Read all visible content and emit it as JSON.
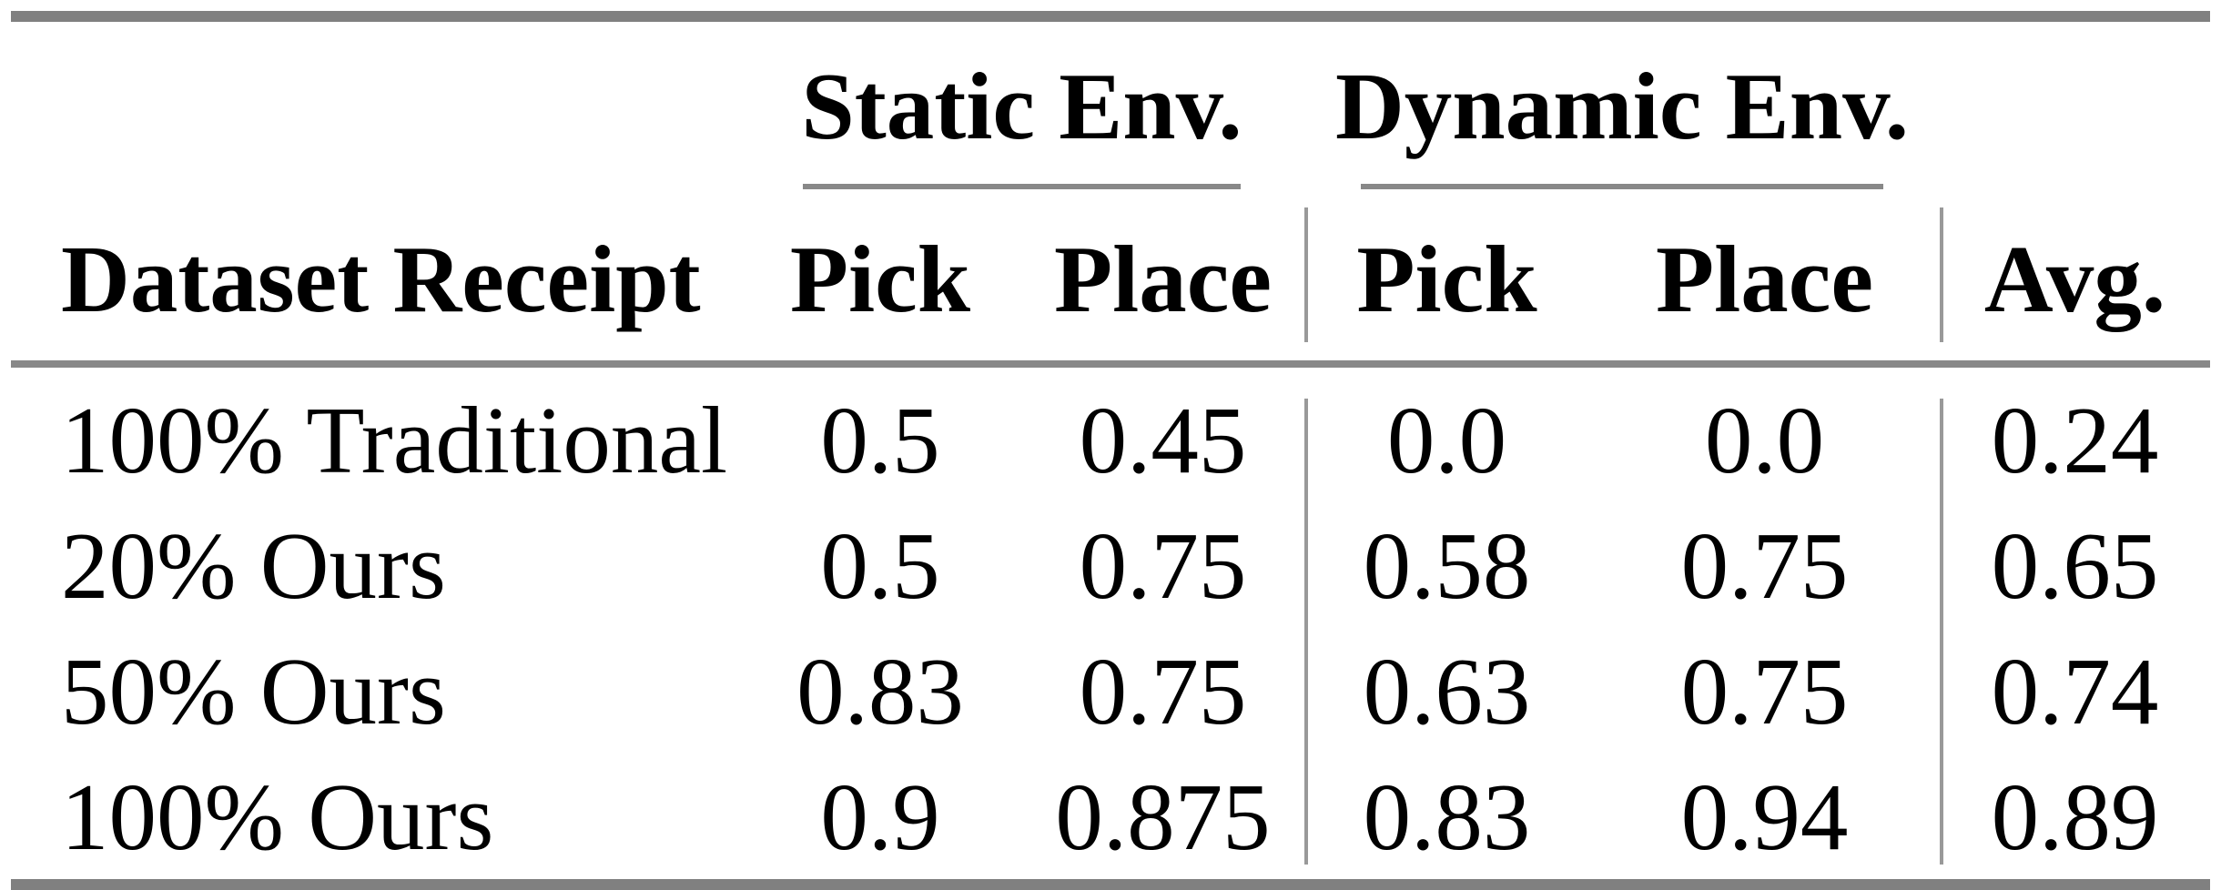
{
  "page": {
    "background": "#ffffff"
  },
  "colors": {
    "text": "#000000",
    "rule_heavy": "#808080",
    "rule_mid": "#888888",
    "rule_light": "#999999"
  },
  "table": {
    "column_groups": [
      {
        "label": "Static Env."
      },
      {
        "label": "Dynamic Env."
      }
    ],
    "headers": {
      "dataset": "Dataset Receipt",
      "static_pick": "Pick",
      "static_place": "Place",
      "dynamic_pick": "Pick",
      "dynamic_place": "Place",
      "avg": "Avg."
    },
    "rows": [
      {
        "label": "100% Traditional",
        "static_pick": "0.5",
        "static_place": "0.45",
        "dynamic_pick": "0.0",
        "dynamic_place": "0.0",
        "avg": "0.24"
      },
      {
        "label": "20% Ours",
        "static_pick": "0.5",
        "static_place": "0.75",
        "dynamic_pick": "0.58",
        "dynamic_place": "0.75",
        "avg": "0.65"
      },
      {
        "label": "50% Ours",
        "static_pick": "0.83",
        "static_place": "0.75",
        "dynamic_pick": "0.63",
        "dynamic_place": "0.75",
        "avg": "0.74"
      },
      {
        "label": "100% Ours",
        "static_pick": "0.9",
        "static_place": "0.875",
        "dynamic_pick": "0.83",
        "dynamic_place": "0.94",
        "avg": "0.89"
      }
    ]
  }
}
